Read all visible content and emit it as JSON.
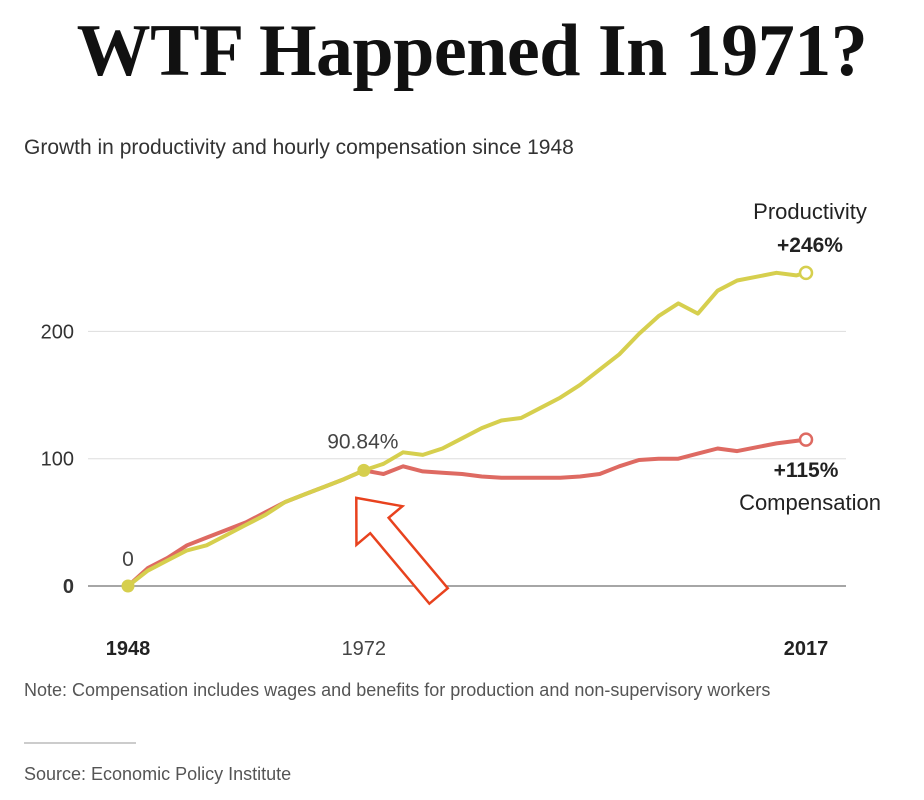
{
  "headline": "WTF Happened In 1971?",
  "subtitle": "Growth in productivity and hourly compensation since 1948",
  "note": "Note: Compensation includes wages and benefits for production and non-supervisory workers",
  "source": "Source: Economic Policy Institute",
  "colors": {
    "productivity": "#d6cf4e",
    "compensation": "#de6a62",
    "arrow": "#e8421e",
    "grid": "#dddddd"
  },
  "chart_data": {
    "type": "line",
    "title": "Growth in productivity and hourly compensation since 1948",
    "xlabel": "",
    "ylabel": "",
    "xlim": [
      1948,
      2017
    ],
    "ylim": [
      0,
      250
    ],
    "y_ticks": [
      {
        "label": "0",
        "value": 0
      },
      {
        "label": "100",
        "value": 100
      },
      {
        "label": "200",
        "value": 200
      }
    ],
    "x_ticks": [
      {
        "label": "1948",
        "value": 1948,
        "bold": true
      },
      {
        "label": "1972",
        "value": 1972,
        "bold": false
      },
      {
        "label": "2017",
        "value": 2017,
        "bold": true
      }
    ],
    "series": [
      {
        "name": "Productivity",
        "end_label": "+246%",
        "x": [
          1948,
          1950,
          1952,
          1954,
          1956,
          1958,
          1960,
          1962,
          1964,
          1966,
          1968,
          1970,
          1972,
          1974,
          1976,
          1978,
          1980,
          1982,
          1984,
          1986,
          1988,
          1990,
          1992,
          1994,
          1996,
          1998,
          2000,
          2002,
          2004,
          2006,
          2008,
          2010,
          2012,
          2014,
          2016,
          2017
        ],
        "values": [
          0,
          12,
          20,
          28,
          32,
          40,
          48,
          56,
          66,
          72,
          78,
          84,
          90.84,
          96,
          105,
          103,
          108,
          116,
          124,
          130,
          132,
          140,
          148,
          158,
          170,
          182,
          198,
          212,
          222,
          214,
          232,
          240,
          243,
          246,
          244,
          246
        ]
      },
      {
        "name": "Compensation",
        "end_label": "+115%",
        "x": [
          1948,
          1950,
          1952,
          1954,
          1956,
          1958,
          1960,
          1962,
          1964,
          1966,
          1968,
          1970,
          1972,
          1974,
          1976,
          1978,
          1980,
          1982,
          1984,
          1986,
          1988,
          1990,
          1992,
          1994,
          1996,
          1998,
          2000,
          2002,
          2004,
          2006,
          2008,
          2010,
          2012,
          2014,
          2016,
          2017
        ],
        "values": [
          0,
          14,
          22,
          32,
          38,
          44,
          50,
          58,
          66,
          72,
          78,
          84,
          90.84,
          88,
          94,
          90,
          89,
          88,
          86,
          85,
          85,
          85,
          85,
          86,
          88,
          94,
          99,
          100,
          100,
          104,
          108,
          106,
          109,
          112,
          114,
          115
        ]
      }
    ],
    "annotations": [
      {
        "text": "0",
        "x": 1948,
        "y": 0
      },
      {
        "text": "90.84%",
        "x": 1972,
        "y": 90.84
      }
    ]
  }
}
